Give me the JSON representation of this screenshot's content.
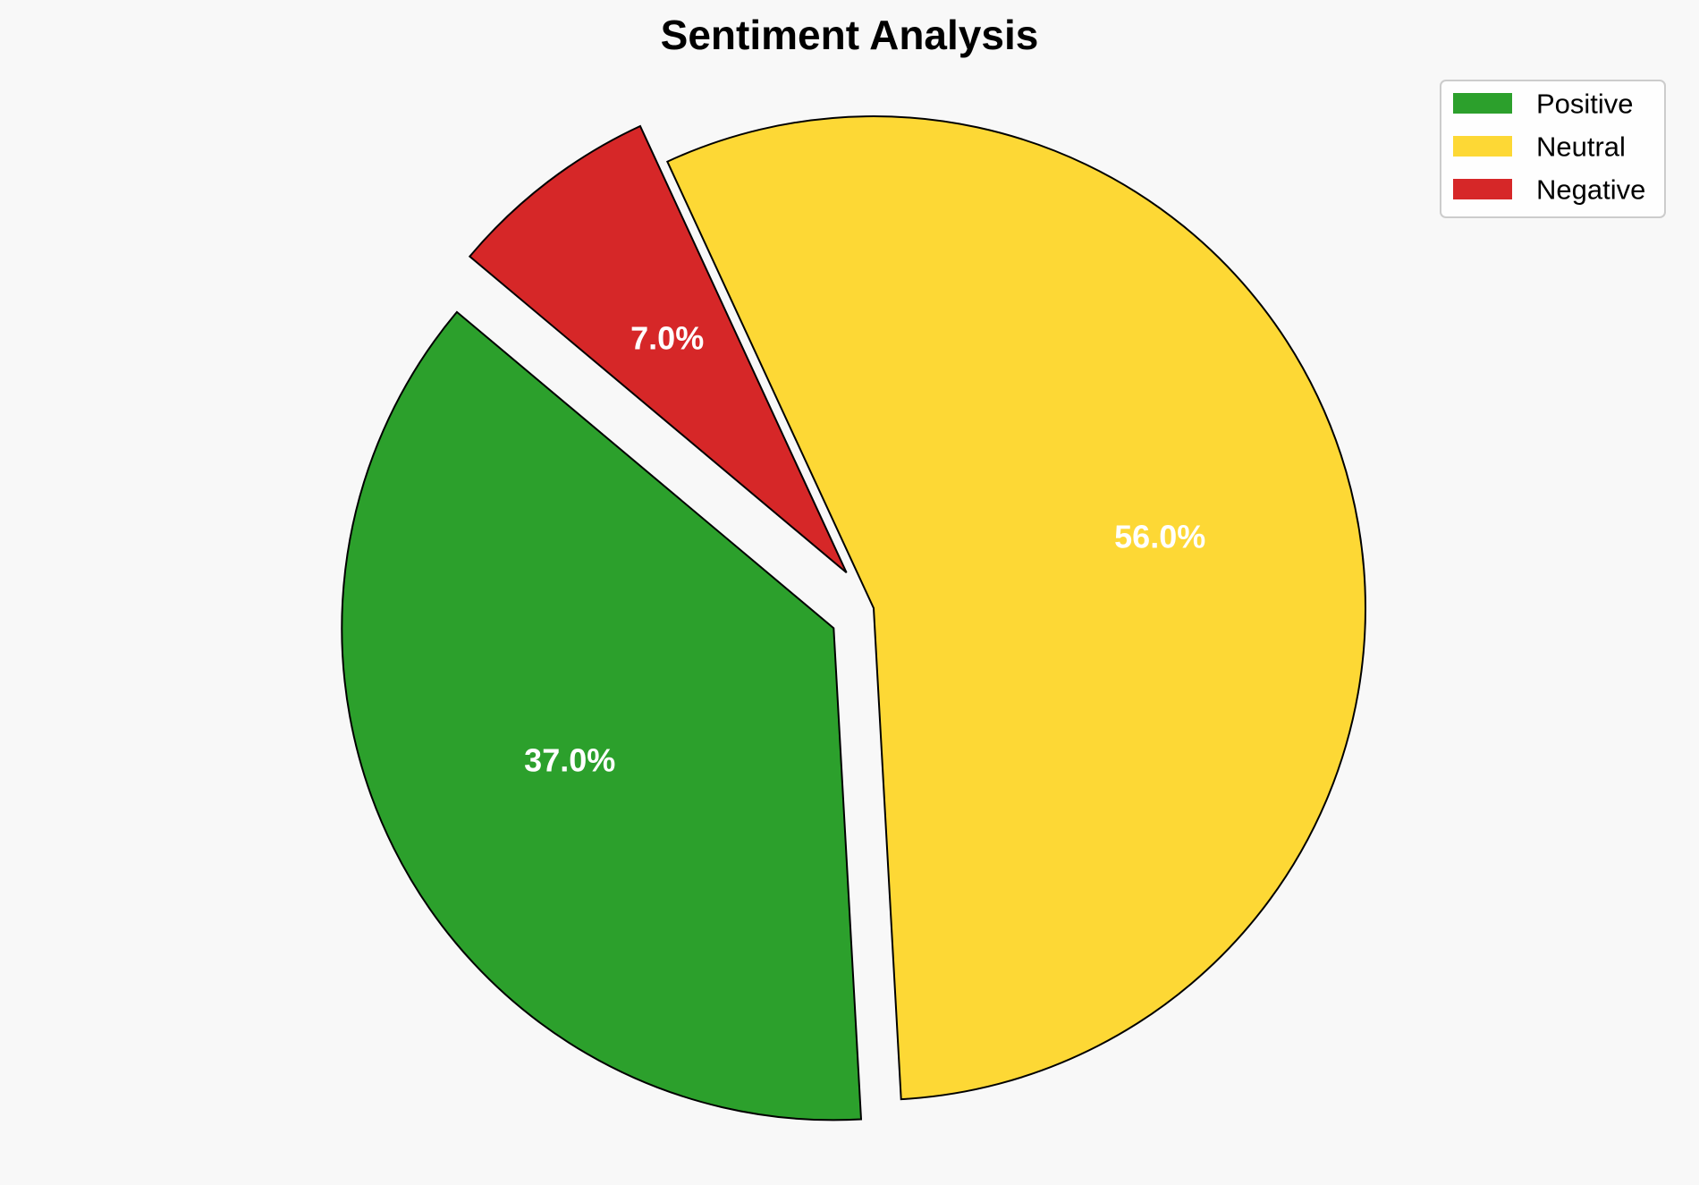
{
  "chart_data": {
    "type": "pie",
    "title": "Sentiment Analysis",
    "labels": [
      "Positive",
      "Neutral",
      "Negative"
    ],
    "values": [
      37.0,
      56.0,
      7.0
    ],
    "value_labels": [
      "37.0%",
      "56.0%",
      "7.0%"
    ],
    "colors": [
      "#2ca02c",
      "#fdd835",
      "#d62728"
    ],
    "exploded": [
      true,
      false,
      true
    ],
    "legend_position": "top-right",
    "start_angle_deg": 140,
    "direction": "counterclockwise"
  }
}
